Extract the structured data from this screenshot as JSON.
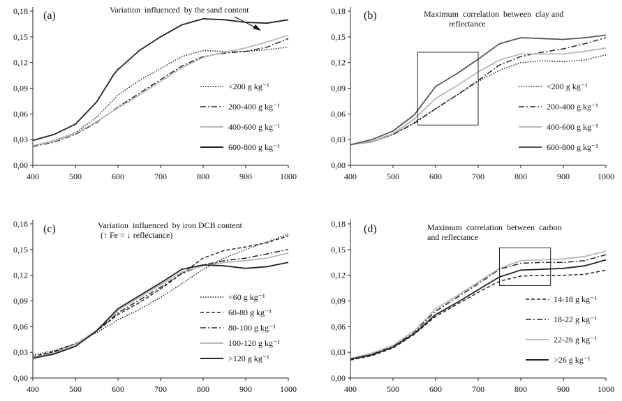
{
  "chart_data": [
    {
      "panel": "(a)",
      "type": "line",
      "annotation": [
        "Variation  influenced  by the sand content"
      ],
      "annotation_arrow": true,
      "xlim": [
        400,
        1000
      ],
      "ylim": [
        0,
        0.18
      ],
      "xticks": [
        400,
        500,
        600,
        700,
        800,
        900,
        1000
      ],
      "yticks": [
        0,
        0.03,
        0.06,
        0.09,
        0.12,
        0.15,
        0.18
      ],
      "ytick_labels": [
        "0,00",
        "0,03",
        "0,06",
        "0,09",
        "0,12",
        "0,15",
        "0,18"
      ],
      "legend_position": "right",
      "series": [
        {
          "name": "<200 g kg⁻¹",
          "style": "dotted",
          "color": "#222222",
          "x": [
            400,
            450,
            500,
            550,
            600,
            650,
            700,
            750,
            800,
            850,
            900,
            950,
            1000
          ],
          "y": [
            0.023,
            0.029,
            0.038,
            0.056,
            0.082,
            0.099,
            0.113,
            0.127,
            0.134,
            0.133,
            0.133,
            0.135,
            0.138
          ]
        },
        {
          "name": "200-400 g kg⁻¹",
          "style": "dashdot",
          "color": "#222222",
          "x": [
            400,
            450,
            500,
            550,
            600,
            650,
            700,
            750,
            800,
            850,
            900,
            950,
            1000
          ],
          "y": [
            0.022,
            0.027,
            0.036,
            0.05,
            0.068,
            0.084,
            0.1,
            0.116,
            0.127,
            0.131,
            0.133,
            0.138,
            0.148
          ]
        },
        {
          "name": "400-600 g kg⁻¹",
          "style": "solid",
          "color": "#b8b8b8",
          "x": [
            400,
            450,
            500,
            550,
            600,
            650,
            700,
            750,
            800,
            850,
            900,
            950,
            1000
          ],
          "y": [
            0.023,
            0.028,
            0.037,
            0.051,
            0.067,
            0.082,
            0.098,
            0.114,
            0.126,
            0.132,
            0.137,
            0.144,
            0.152
          ]
        },
        {
          "name": "600-800 g kg⁻¹",
          "style": "solid",
          "color": "#222222",
          "x": [
            400,
            450,
            500,
            550,
            590,
            600,
            605,
            650,
            700,
            750,
            800,
            850,
            900,
            950,
            1000
          ],
          "y": [
            0.029,
            0.036,
            0.048,
            0.074,
            0.106,
            0.112,
            0.114,
            0.134,
            0.15,
            0.164,
            0.171,
            0.17,
            0.167,
            0.166,
            0.17
          ]
        }
      ]
    },
    {
      "panel": "(b)",
      "type": "line",
      "annotation": [
        "Maximum  correlation  between  clay and",
        "reflectance"
      ],
      "highlight_box": {
        "x": [
          558,
          700
        ],
        "y": [
          0.047,
          0.132
        ]
      },
      "xlim": [
        400,
        1000
      ],
      "ylim": [
        0,
        0.18
      ],
      "xticks": [
        400,
        500,
        600,
        700,
        800,
        900,
        1000
      ],
      "yticks": [
        0,
        0.03,
        0.06,
        0.09,
        0.12,
        0.15,
        0.18
      ],
      "ytick_labels": [
        "0,00",
        "0,03",
        "0,06",
        "0,09",
        "0,12",
        "0,15",
        "0,18"
      ],
      "legend_position": "right",
      "series": [
        {
          "name": "<200 g kg⁻¹",
          "style": "dotted",
          "color": "#222222",
          "x": [
            400,
            450,
            500,
            550,
            600,
            650,
            700,
            750,
            800,
            850,
            900,
            950,
            1000
          ],
          "y": [
            0.024,
            0.027,
            0.036,
            0.05,
            0.066,
            0.082,
            0.098,
            0.111,
            0.12,
            0.122,
            0.121,
            0.123,
            0.129
          ]
        },
        {
          "name": "200-400 g kg⁻¹",
          "style": "dashdot",
          "color": "#222222",
          "x": [
            400,
            450,
            500,
            550,
            600,
            650,
            700,
            750,
            800,
            850,
            900,
            950,
            1000
          ],
          "y": [
            0.024,
            0.028,
            0.036,
            0.049,
            0.066,
            0.082,
            0.099,
            0.117,
            0.127,
            0.132,
            0.136,
            0.142,
            0.149
          ]
        },
        {
          "name": "400-600 g kg⁻¹",
          "style": "solid",
          "color": "#b8b8b8",
          "x": [
            400,
            450,
            500,
            550,
            600,
            650,
            700,
            750,
            800,
            850,
            900,
            950,
            1000
          ],
          "y": [
            0.024,
            0.028,
            0.037,
            0.054,
            0.078,
            0.093,
            0.109,
            0.123,
            0.13,
            0.13,
            0.13,
            0.133,
            0.137
          ]
        },
        {
          "name": "600-800 g kg⁻¹",
          "style": "solid",
          "color": "#555555",
          "x": [
            400,
            450,
            500,
            550,
            600,
            650,
            700,
            750,
            800,
            850,
            900,
            950,
            1000
          ],
          "y": [
            0.024,
            0.03,
            0.04,
            0.059,
            0.092,
            0.107,
            0.124,
            0.142,
            0.149,
            0.148,
            0.147,
            0.149,
            0.152
          ]
        }
      ]
    },
    {
      "panel": "(c)",
      "type": "line",
      "annotation": [
        "Variation  influenced  by iron DCB content",
        "(↑ Fe = ↓ reflectance)"
      ],
      "xlim": [
        400,
        1000
      ],
      "ylim": [
        0,
        0.18
      ],
      "xticks": [
        400,
        500,
        600,
        700,
        800,
        900,
        1000
      ],
      "yticks": [
        0,
        0.03,
        0.06,
        0.09,
        0.12,
        0.15,
        0.18
      ],
      "ytick_labels": [
        "0,00",
        "0,03",
        "0,06",
        "0,09",
        "0,12",
        "0,15",
        "0,18"
      ],
      "legend_position": "right",
      "series": [
        {
          "name": "<60 g kg⁻¹",
          "style": "dotted",
          "color": "#222222",
          "x": [
            400,
            450,
            500,
            550,
            600,
            650,
            700,
            750,
            800,
            850,
            900,
            950,
            1000
          ],
          "y": [
            0.027,
            0.032,
            0.04,
            0.053,
            0.068,
            0.08,
            0.094,
            0.11,
            0.127,
            0.14,
            0.15,
            0.159,
            0.168
          ]
        },
        {
          "name": "60-80 g kg⁻¹",
          "style": "dashed",
          "color": "#222222",
          "x": [
            400,
            450,
            500,
            550,
            600,
            650,
            700,
            750,
            800,
            850,
            900,
            950,
            1000
          ],
          "y": [
            0.025,
            0.031,
            0.04,
            0.055,
            0.074,
            0.088,
            0.104,
            0.122,
            0.14,
            0.149,
            0.153,
            0.158,
            0.166
          ]
        },
        {
          "name": "80-100 g kg⁻¹",
          "style": "dashdot",
          "color": "#222222",
          "x": [
            400,
            450,
            500,
            550,
            600,
            650,
            700,
            750,
            800,
            850,
            900,
            950,
            1000
          ],
          "y": [
            0.024,
            0.03,
            0.039,
            0.055,
            0.076,
            0.091,
            0.106,
            0.122,
            0.132,
            0.137,
            0.14,
            0.145,
            0.15
          ]
        },
        {
          "name": "100-120 g kg⁻¹",
          "style": "solid",
          "color": "#b8b8b8",
          "x": [
            400,
            450,
            500,
            550,
            600,
            650,
            700,
            750,
            800,
            850,
            900,
            950,
            1000
          ],
          "y": [
            0.024,
            0.029,
            0.039,
            0.056,
            0.079,
            0.094,
            0.109,
            0.124,
            0.131,
            0.135,
            0.137,
            0.14,
            0.146
          ]
        },
        {
          "name": ">120 g kg⁻¹",
          "style": "solid",
          "color": "#222222",
          "x": [
            400,
            450,
            500,
            550,
            600,
            650,
            700,
            750,
            800,
            850,
            900,
            950,
            1000
          ],
          "y": [
            0.023,
            0.028,
            0.037,
            0.055,
            0.081,
            0.096,
            0.111,
            0.127,
            0.132,
            0.131,
            0.128,
            0.13,
            0.135
          ]
        }
      ]
    },
    {
      "panel": "(d)",
      "type": "line",
      "annotation": [
        "Maximum  correlation  between  carbon",
        "and reflectance"
      ],
      "highlight_box": {
        "x": [
          750,
          870
        ],
        "y": [
          0.108,
          0.152
        ]
      },
      "xlim": [
        400,
        1000
      ],
      "ylim": [
        0,
        0.18
      ],
      "xticks": [
        400,
        500,
        600,
        700,
        800,
        900,
        1000
      ],
      "yticks": [
        0,
        0.03,
        0.06,
        0.09,
        0.12,
        0.15,
        0.18
      ],
      "ytick_labels": [
        "0,00",
        "0,03",
        "0,06",
        "0,09",
        "0,12",
        "0,15",
        "0,18"
      ],
      "legend_position": "right",
      "series": [
        {
          "name": "14-18 g kg⁻¹",
          "style": "dashed",
          "color": "#222222",
          "x": [
            400,
            450,
            500,
            550,
            600,
            650,
            700,
            750,
            800,
            850,
            900,
            950,
            1000
          ],
          "y": [
            0.021,
            0.026,
            0.035,
            0.051,
            0.072,
            0.086,
            0.1,
            0.113,
            0.119,
            0.12,
            0.12,
            0.121,
            0.126
          ]
        },
        {
          "name": "18-22 g kg⁻¹",
          "style": "dashdot",
          "color": "#222222",
          "x": [
            400,
            450,
            500,
            550,
            600,
            650,
            700,
            750,
            800,
            850,
            900,
            950,
            1000
          ],
          "y": [
            0.023,
            0.028,
            0.037,
            0.054,
            0.078,
            0.094,
            0.11,
            0.127,
            0.134,
            0.135,
            0.135,
            0.137,
            0.144
          ]
        },
        {
          "name": "22-26 g kg⁻¹",
          "style": "solid",
          "color": "#b8b8b8",
          "x": [
            400,
            450,
            500,
            550,
            600,
            650,
            700,
            750,
            800,
            850,
            900,
            950,
            1000
          ],
          "y": [
            0.023,
            0.029,
            0.038,
            0.055,
            0.081,
            0.096,
            0.112,
            0.128,
            0.137,
            0.138,
            0.139,
            0.142,
            0.148
          ]
        },
        {
          "name": ">26 g kg⁻¹",
          "style": "solid",
          "color": "#222222",
          "x": [
            400,
            450,
            500,
            550,
            600,
            650,
            700,
            750,
            800,
            850,
            900,
            950,
            1000
          ],
          "y": [
            0.022,
            0.027,
            0.036,
            0.052,
            0.074,
            0.088,
            0.103,
            0.118,
            0.126,
            0.127,
            0.128,
            0.131,
            0.138
          ]
        }
      ]
    }
  ]
}
